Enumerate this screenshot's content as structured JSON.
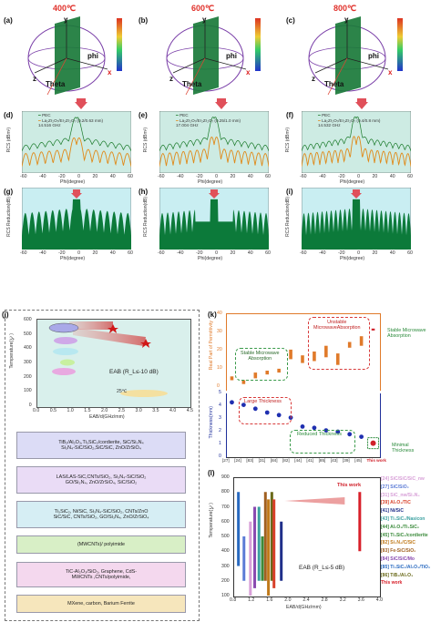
{
  "temps": [
    "400℃",
    "600℃",
    "800℃"
  ],
  "panels": {
    "a": "(a)",
    "b": "(b)",
    "c": "(c)",
    "d": "(d)",
    "e": "(e)",
    "f": "(f)",
    "g": "(g)",
    "h": "(h)",
    "i": "(i)",
    "j": "(j)",
    "k": "(k)",
    "l": "(l)"
  },
  "axis3d": {
    "y": "y",
    "x": "x",
    "z": "z",
    "phi": "phi",
    "theta": "Theta"
  },
  "rcs": {
    "legend_pec": "PEC",
    "legend_coat": [
      "La₂Zr₂O₇/Er₂Zr₂O₇ (0.2/0.63 mm)",
      "La₂Zr₂O₇/Er₂Zr₂O₇ (0.25/1.0 mm)",
      "La₂Zr₂O₇/Er₂Zr₂O₇ (0.4/0.8 mm)"
    ],
    "freq": [
      "14.516 GHz",
      "17.004 GHz",
      "14.532 GHz"
    ],
    "ylabel": "RCS (dBm²)",
    "xlabel": "Phi(degree)",
    "xticks": [
      "-60",
      "-40",
      "-20",
      "0",
      "20",
      "40",
      "60"
    ],
    "yticks": [
      "10",
      "0",
      "-10",
      "-20",
      "-30",
      "-40",
      "-50"
    ]
  },
  "red": {
    "ylabel": "RCS Reduction(dB)",
    "xlabel": "Phi(degree)",
    "yticks": [
      "40",
      "30",
      "20",
      "10",
      "0"
    ]
  },
  "j": {
    "yaxis": "Temperature(℃)",
    "xaxis": "EAB/d(GHz/mm)",
    "yticks": [
      "600",
      "500",
      "400",
      "300",
      "200",
      "100",
      "0"
    ],
    "xticks": [
      "0.0",
      "0.5",
      "1.0",
      "1.5",
      "2.0",
      "2.5",
      "3.0",
      "3.5",
      "4.0",
      "4.5"
    ],
    "eab_note": "EAB (R_L≤-10 dB)",
    "t25": "25℃",
    "boxes": [
      "TiB₂/Al₂O₃,Ti₃SiC₂/cordierite, SiC/Si₃N₄\nSi₃N₄-SiC/SiO₂,SiC/SiC, ZnO/ZrSiO₄",
      "LAS/LAS-SiC,CNTs/SiO₂, Si₃N₄-SiC/SiO₂\nGO/Si₃N₄, ZnO/ZrSiO₄, SiC/SiO₂",
      "Ti₃SiC₂, Ni/SiC, Si₃N₄-SiC/SiO₂, CNTs/ZnO\nSiC/SiC, CNTs/SiO₂, GO/Si₃N₄, ZnO/ZrSiO₄",
      "(MWCNTs)/ polyimide",
      "TiC-Al₂O₃/SiO₂, Graphene, CdS-\nMWCNTs ,CNTs/polyimide,",
      "MXene, carbon, Barium Ferrite"
    ]
  },
  "k": {
    "ylabel_top": "Real Part of Permittivity",
    "ylabel_bot": "Thickness(mm)",
    "yticks_top": [
      "40",
      "30",
      "20",
      "10",
      "0"
    ],
    "yticks_bot": [
      "5",
      "4",
      "3",
      "2",
      "1",
      "0"
    ],
    "xticks": [
      "[27]",
      "[24]",
      "[83]",
      "[31]",
      "[84]",
      "[82]",
      "[44]",
      "[41]",
      "[85]",
      "[43]",
      "[39]",
      "[45]",
      "This work"
    ],
    "stable": "Stable Microwave\nAbsorption",
    "unstable": "Unstable\nMicrowaveAbsorption",
    "stable_right": "Stable Microwave\nAbsorption",
    "large": "Large Thickness",
    "reduced": "Reduced Thickness",
    "minimal": "Minimal\nThickness",
    "thickness_values": [
      4.3,
      4.1,
      3.8,
      3.5,
      3.3,
      3.1,
      2.4,
      2.3,
      2.1,
      2.0,
      1.8,
      1.6,
      1.1
    ],
    "bar_labels": [
      "200-400℃",
      "25-400℃",
      "100-500℃",
      "RT-400℃",
      "100-600℃",
      "25-600℃",
      "RT-800℃",
      "25-700℃",
      "200-700℃",
      "RT-800℃",
      "200-700℃",
      "400-800℃"
    ]
  },
  "l": {
    "yaxis": "Temperature(℃)",
    "xaxis": "EAB/d(GHz/mm)",
    "yticks": [
      "900",
      "800",
      "700",
      "600",
      "500",
      "400",
      "300",
      "200",
      "100"
    ],
    "xticks": [
      "0.8",
      "1.2",
      "1.6",
      "2.0",
      "2.4",
      "2.8",
      "3.2",
      "3.6",
      "4.0"
    ],
    "note": "EAB (R_L≤-5 dB)",
    "thiswork": "This work",
    "legend": [
      {
        "ref": "[24]",
        "name": "SiC/SiC/SiC_nw",
        "color": "#d8a0d8"
      },
      {
        "ref": "[27]",
        "name": "SiC/SiO₂",
        "color": "#5b7bd6"
      },
      {
        "ref": "[31]",
        "name": "SiC_nw/Si₃N₄",
        "color": "#d8a0d8"
      },
      {
        "ref": "[39]",
        "name": "Al₂O₃/TiC",
        "color": "#d8402a"
      },
      {
        "ref": "[41]",
        "name": "Ni/SiC",
        "color": "#1f2f8a"
      },
      {
        "ref": "[43]",
        "name": "Ti₃SiC₂/Nasicon",
        "color": "#3aa0a0"
      },
      {
        "ref": "[44]",
        "name": "Al₂O₃/Ti₃SiC₂",
        "color": "#3a8a3a"
      },
      {
        "ref": "[45]",
        "name": "Ti₃SiC₂/cordierite",
        "color": "#3a8a3a"
      },
      {
        "ref": "[82]",
        "name": "Si₃N₄/C/SiC",
        "color": "#c07a1a"
      },
      {
        "ref": "[83]",
        "name": "Fe-SiC/SiO₂",
        "color": "#a06020"
      },
      {
        "ref": "[84]",
        "name": "SiC/SiC/Mo",
        "color": "#8a4ab0"
      },
      {
        "ref": "[85]",
        "name": "Ti₃SiC₂/Al₂O₃/TiO₂",
        "color": "#2a6ac0"
      },
      {
        "ref": "[86]",
        "name": "TiB₂/Al₂O₃",
        "color": "#6a6a1a"
      },
      {
        "ref": "",
        "name": "This work",
        "color": "#d8202a"
      }
    ]
  },
  "colors": {
    "plot_bg": "#cdebe3",
    "green_fill": "#0c7a3a",
    "pec": "#1a7a2a",
    "coat": "#e08a1a",
    "red": "#e0302a",
    "cyan_bg": "#c9eef2"
  }
}
